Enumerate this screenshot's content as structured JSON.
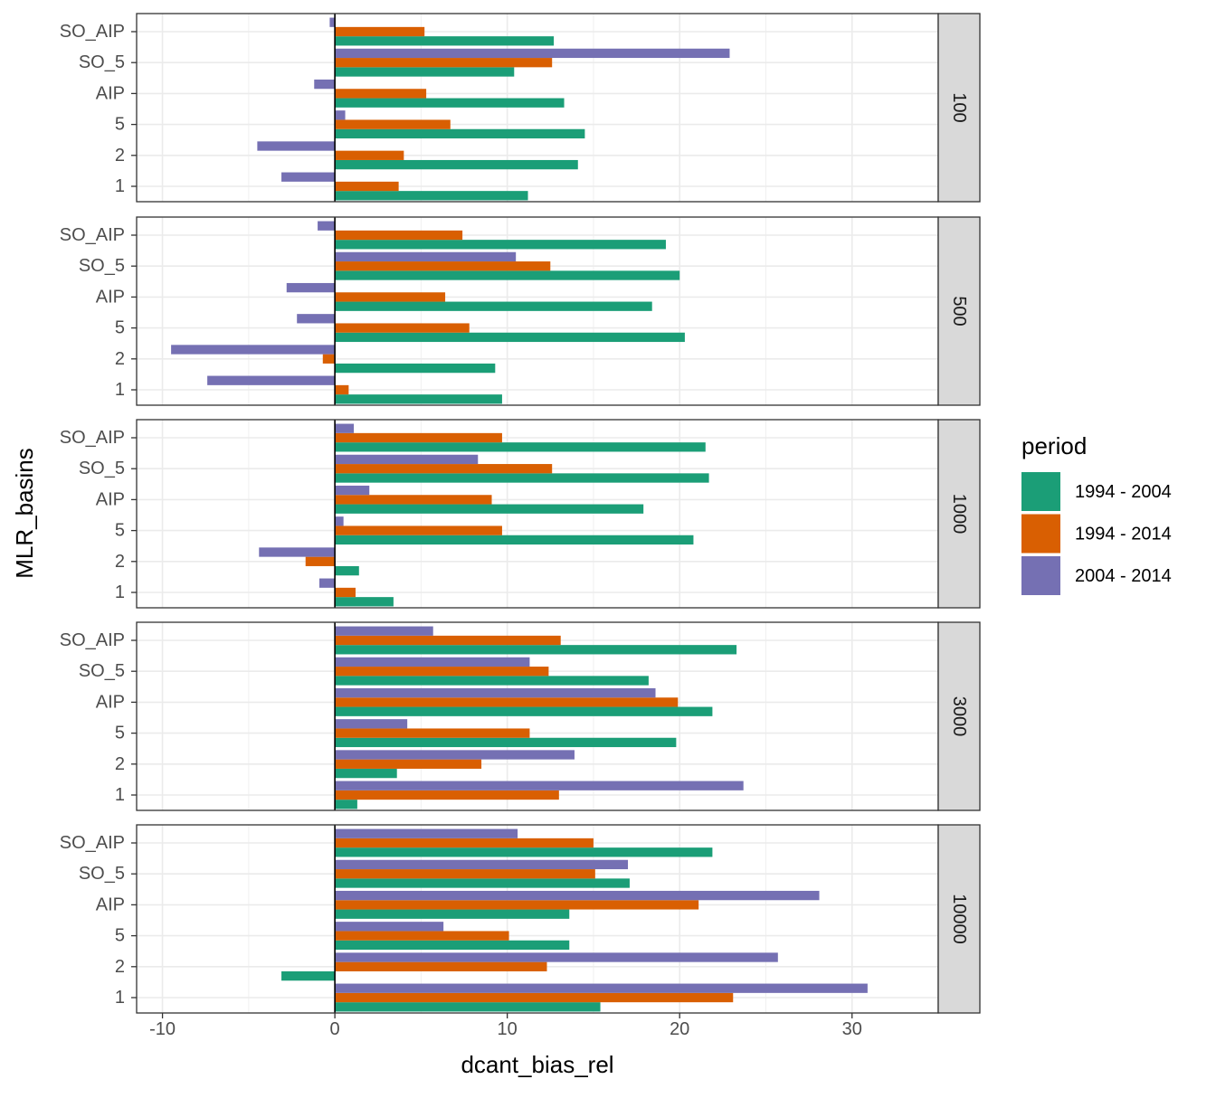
{
  "chart_data": {
    "type": "bar",
    "orientation": "horizontal",
    "faceted_by": "depth",
    "xlabel": "dcant_bias_rel",
    "ylabel": "MLR_basins",
    "xlim": [
      -11.5,
      35
    ],
    "x_ticks": [
      -10,
      0,
      10,
      20,
      30
    ],
    "x_tick_labels": [
      "-10",
      "0",
      "10",
      "20",
      "30"
    ],
    "categories": [
      "SO_AIP",
      "SO_5",
      "AIP",
      "5",
      "2",
      "1"
    ],
    "grid": true,
    "reference_line_x": 0,
    "legend": {
      "title": "period",
      "placement": "right",
      "entries": [
        {
          "label": "1994 - 2004",
          "color": "#1b9e77"
        },
        {
          "label": "1994 - 2014",
          "color": "#d95f02"
        },
        {
          "label": "2004 - 2014",
          "color": "#7570b3"
        }
      ]
    },
    "panels": [
      {
        "strip": "100",
        "series": [
          {
            "name": "1994 - 2004",
            "values": [
              12.7,
              10.4,
              13.3,
              14.5,
              14.1,
              11.2
            ]
          },
          {
            "name": "1994 - 2014",
            "values": [
              5.2,
              12.6,
              5.3,
              6.7,
              4.0,
              3.7
            ]
          },
          {
            "name": "2004 - 2014",
            "values": [
              -0.3,
              22.9,
              -1.2,
              0.6,
              -4.5,
              -3.1
            ]
          }
        ]
      },
      {
        "strip": "500",
        "series": [
          {
            "name": "1994 - 2004",
            "values": [
              19.2,
              20.0,
              18.4,
              20.3,
              9.3,
              9.7
            ]
          },
          {
            "name": "1994 - 2014",
            "values": [
              7.4,
              12.5,
              6.4,
              7.8,
              -0.7,
              0.8
            ]
          },
          {
            "name": "2004 - 2014",
            "values": [
              -1.0,
              10.5,
              -2.8,
              -2.2,
              -9.5,
              -7.4
            ]
          }
        ]
      },
      {
        "strip": "1000",
        "series": [
          {
            "name": "1994 - 2004",
            "values": [
              21.5,
              21.7,
              17.9,
              20.8,
              1.4,
              3.4
            ]
          },
          {
            "name": "1994 - 2014",
            "values": [
              9.7,
              12.6,
              9.1,
              9.7,
              -1.7,
              1.2
            ]
          },
          {
            "name": "2004 - 2014",
            "values": [
              1.1,
              8.3,
              2.0,
              0.5,
              -4.4,
              -0.9
            ]
          }
        ]
      },
      {
        "strip": "3000",
        "series": [
          {
            "name": "1994 - 2004",
            "values": [
              23.3,
              18.2,
              21.9,
              19.8,
              3.6,
              1.3
            ]
          },
          {
            "name": "1994 - 2014",
            "values": [
              13.1,
              12.4,
              19.9,
              11.3,
              8.5,
              13.0
            ]
          },
          {
            "name": "2004 - 2014",
            "values": [
              5.7,
              11.3,
              18.6,
              4.2,
              13.9,
              23.7
            ]
          }
        ]
      },
      {
        "strip": "10000",
        "series": [
          {
            "name": "1994 - 2004",
            "values": [
              21.9,
              17.1,
              13.6,
              13.6,
              -3.1,
              15.4
            ]
          },
          {
            "name": "1994 - 2014",
            "values": [
              15.0,
              15.1,
              21.1,
              10.1,
              12.3,
              23.1
            ]
          },
          {
            "name": "2004 - 2014",
            "values": [
              10.6,
              17.0,
              28.1,
              6.3,
              25.7,
              30.9
            ]
          }
        ]
      }
    ]
  }
}
